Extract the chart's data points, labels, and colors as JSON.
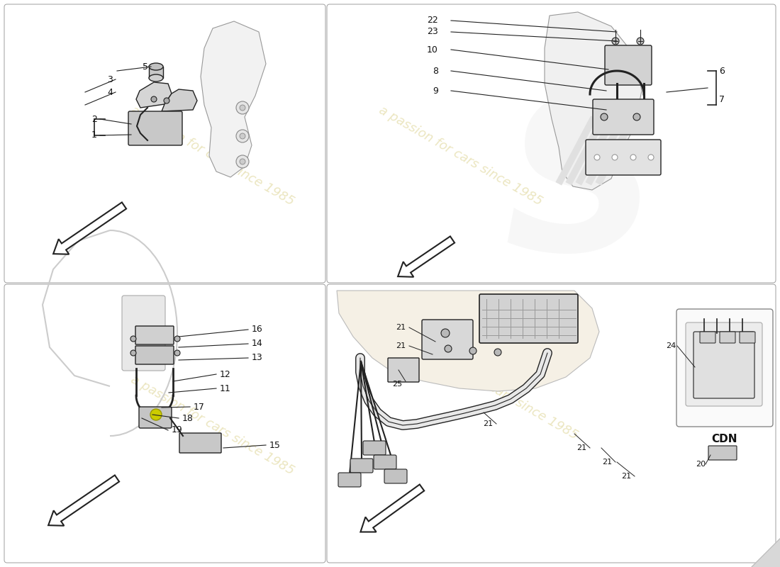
{
  "bg_color": "#ffffff",
  "watermark_text": "a passion for cars since 1985",
  "watermark_color": "#d4c875",
  "watermark_alpha": 0.45,
  "cdn_label": "CDN",
  "panel_line_color": "#aaaaaa",
  "panel_lw": 0.8,
  "line_color": "#222222",
  "text_color": "#111111",
  "arrow_color": "#333333"
}
